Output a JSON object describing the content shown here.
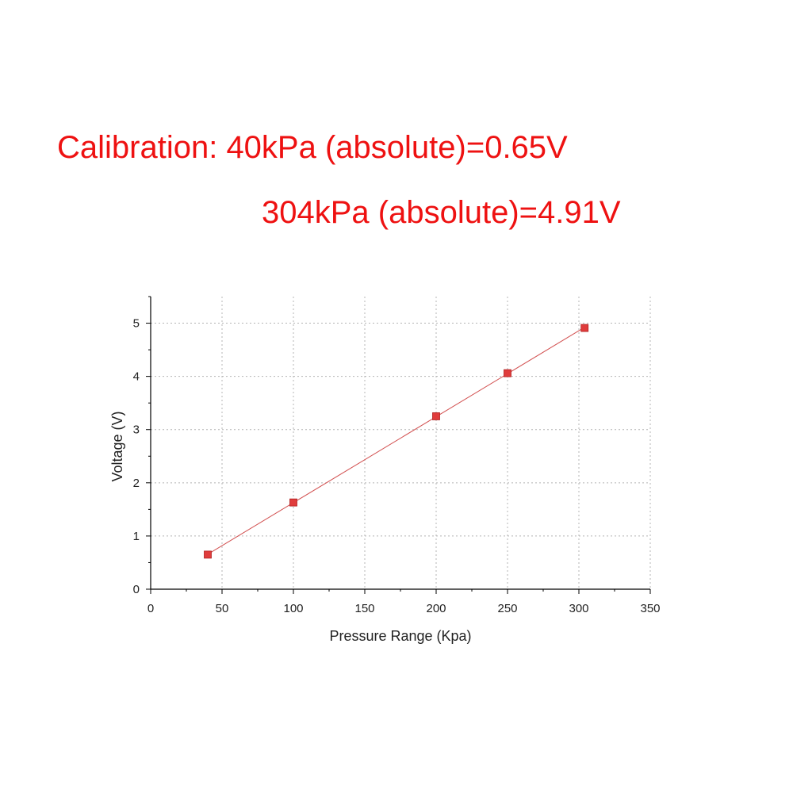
{
  "calibration": {
    "line1": "Calibration: 40kPa (absolute)=0.65V",
    "line2": "304kPa (absolute)=4.91V"
  },
  "colors": {
    "annotation": "#ee1111",
    "series": "#e03c3c",
    "fit_line": "#d25050",
    "grid": "#b4b4b4",
    "axis": "#000000"
  },
  "chart_data": {
    "type": "scatter",
    "title": "",
    "xlabel": "Pressure Range (Kpa)",
    "ylabel": "Voltage (V)",
    "xlim": [
      0,
      350
    ],
    "ylim": [
      0,
      5.5
    ],
    "xticks": [
      0,
      50,
      100,
      150,
      200,
      250,
      300,
      350
    ],
    "yticks": [
      0,
      1,
      2,
      3,
      4,
      5
    ],
    "grid": true,
    "series": [
      {
        "x": [
          40,
          100,
          200,
          250,
          304
        ],
        "y": [
          0.65,
          1.63,
          3.25,
          4.06,
          4.91
        ],
        "marker": "square",
        "line": "linear-fit"
      }
    ]
  }
}
